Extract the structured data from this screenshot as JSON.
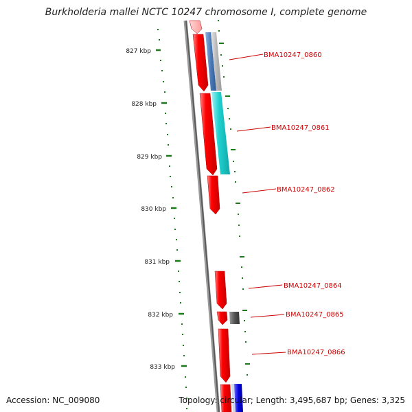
{
  "title": "Burkholderia mallei NCTC 10247 chromosome I, complete genome",
  "accession": "Accession: NC_009080",
  "stats": "Topology: circular; Length: 3,495,687 bp; Genes: 3,325",
  "colors": {
    "gene_fwd": "#ff0000",
    "label": "#cc0000",
    "tick": "#1a7a1a",
    "backbone": "#777777"
  },
  "axis_labels": [
    "827 kbp",
    "828 kbp",
    "829 kbp",
    "830 kbp",
    "831 kbp",
    "832 kbp",
    "833 kbp"
  ],
  "gene_labels": [
    "BMA10247_0860",
    "BMA10247_0861",
    "BMA10247_0862",
    "BMA10247_0864",
    "BMA10247_0865",
    "BMA10247_0866"
  ]
}
